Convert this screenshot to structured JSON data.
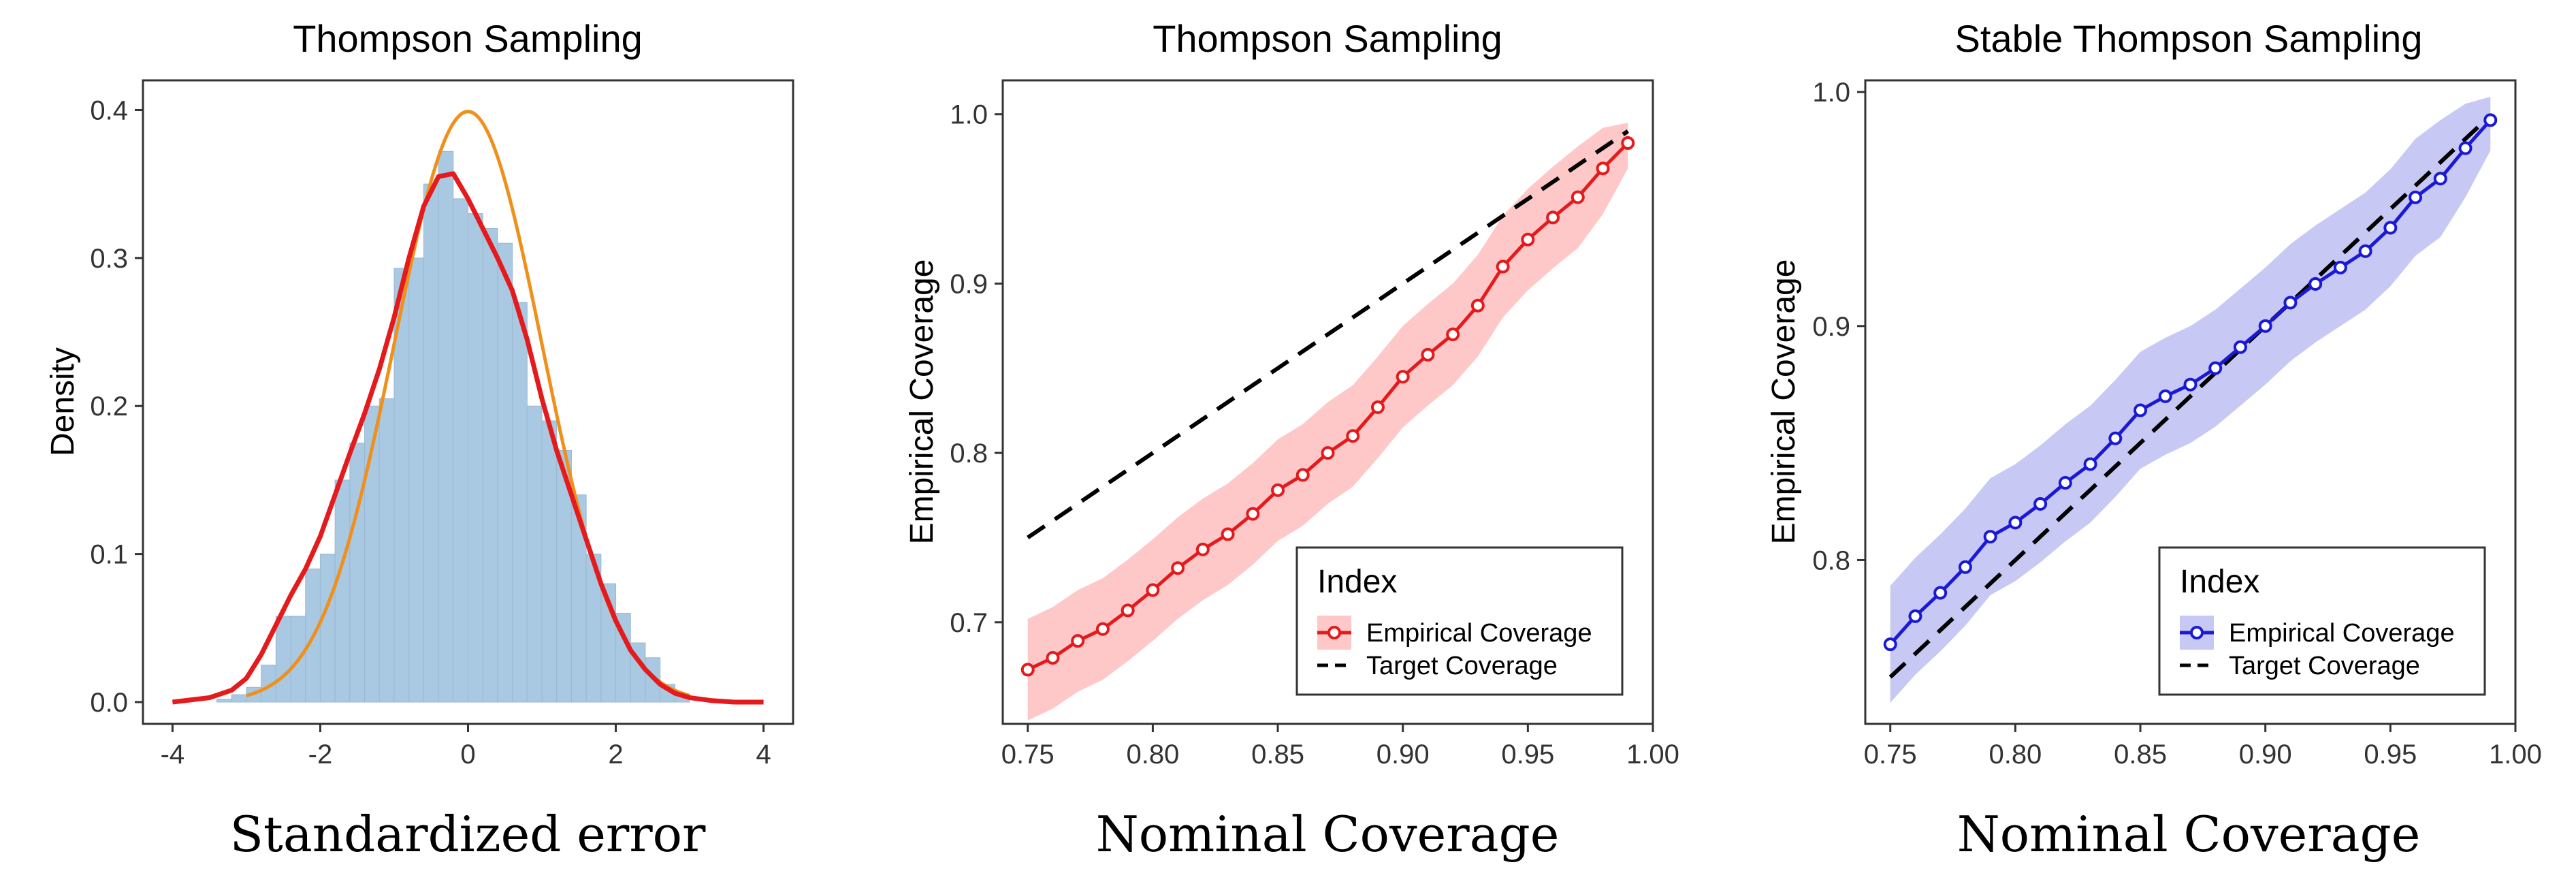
{
  "chart_data": [
    {
      "type": "histogram",
      "title": "Thompson Sampling",
      "xlabel": "Standardized error",
      "ylabel": "Density",
      "xlim": [
        -4,
        4
      ],
      "ylim": [
        0,
        0.4
      ],
      "xticks": [
        "-4",
        "-2",
        "0",
        "2",
        "4"
      ],
      "yticks": [
        "0.0",
        "0.1",
        "0.2",
        "0.3",
        "0.4"
      ],
      "grid": false,
      "colors": {
        "bars": "#a9c8e1",
        "kde": "#e41a1c",
        "normal": "#f0901c"
      },
      "histogram": {
        "bin_width": 0.2,
        "bin_starts": [
          -3.4,
          -3.2,
          -3.0,
          -2.8,
          -2.6,
          -2.4,
          -2.2,
          -2.0,
          -1.8,
          -1.6,
          -1.4,
          -1.2,
          -1.0,
          -0.8,
          -0.6,
          -0.4,
          -0.2,
          0.0,
          0.2,
          0.4,
          0.6,
          0.8,
          1.0,
          1.2,
          1.4,
          1.6,
          1.8,
          2.0,
          2.2,
          2.4,
          2.6,
          2.8
        ],
        "density": [
          0.002,
          0.005,
          0.01,
          0.025,
          0.058,
          0.058,
          0.09,
          0.1,
          0.15,
          0.175,
          0.2,
          0.205,
          0.293,
          0.3,
          0.35,
          0.372,
          0.34,
          0.33,
          0.32,
          0.31,
          0.27,
          0.2,
          0.19,
          0.17,
          0.14,
          0.1,
          0.08,
          0.06,
          0.04,
          0.03,
          0.012,
          0.005
        ]
      },
      "kde": {
        "x": [
          -4,
          -3.5,
          -3.2,
          -3,
          -2.8,
          -2.6,
          -2.4,
          -2.2,
          -2,
          -1.8,
          -1.6,
          -1.4,
          -1.2,
          -1,
          -0.8,
          -0.6,
          -0.4,
          -0.2,
          0,
          0.2,
          0.4,
          0.6,
          0.8,
          1,
          1.2,
          1.4,
          1.6,
          1.8,
          2,
          2.2,
          2.4,
          2.6,
          2.8,
          3,
          3.3,
          3.6,
          4
        ],
        "y": [
          0,
          0.003,
          0.008,
          0.016,
          0.032,
          0.052,
          0.072,
          0.09,
          0.112,
          0.14,
          0.168,
          0.195,
          0.225,
          0.26,
          0.3,
          0.335,
          0.355,
          0.357,
          0.34,
          0.32,
          0.3,
          0.278,
          0.245,
          0.205,
          0.17,
          0.14,
          0.11,
          0.08,
          0.055,
          0.035,
          0.022,
          0.012,
          0.006,
          0.003,
          0.001,
          0,
          0
        ]
      },
      "normal_curve": {
        "mean": 0,
        "sd": 1
      }
    },
    {
      "type": "line",
      "title": "Thompson Sampling",
      "xlabel": "Nominal Coverage",
      "ylabel": "Empirical Coverage",
      "xlim": [
        0.74,
        1.0
      ],
      "ylim": [
        0.64,
        1.02
      ],
      "xticks": [
        "0.75",
        "0.80",
        "0.85",
        "0.90",
        "0.95",
        "1.00"
      ],
      "yticks": [
        "0.7",
        "0.8",
        "0.9",
        "1.0"
      ],
      "grid": false,
      "legend": {
        "title": "Index",
        "position": "bottom-right",
        "entries": [
          {
            "label": "Empirical Coverage",
            "style": "line-point-band"
          },
          {
            "label": "Target Coverage",
            "style": "dashed"
          }
        ]
      },
      "x": [
        0.75,
        0.76,
        0.77,
        0.78,
        0.79,
        0.8,
        0.81,
        0.82,
        0.83,
        0.84,
        0.85,
        0.86,
        0.87,
        0.88,
        0.89,
        0.9,
        0.91,
        0.92,
        0.93,
        0.94,
        0.95,
        0.96,
        0.97,
        0.98,
        0.99
      ],
      "series": [
        {
          "name": "Empirical Coverage",
          "color": "#e41a1c",
          "band_color": "#ffc8c8",
          "values": [
            0.672,
            0.679,
            0.689,
            0.696,
            0.707,
            0.719,
            0.732,
            0.743,
            0.752,
            0.764,
            0.778,
            0.787,
            0.8,
            0.81,
            0.827,
            0.845,
            0.858,
            0.87,
            0.887,
            0.91,
            0.926,
            0.939,
            0.951,
            0.968,
            0.983
          ],
          "lower": [
            0.642,
            0.649,
            0.659,
            0.666,
            0.677,
            0.689,
            0.702,
            0.713,
            0.722,
            0.734,
            0.748,
            0.757,
            0.77,
            0.78,
            0.797,
            0.815,
            0.828,
            0.84,
            0.857,
            0.88,
            0.896,
            0.909,
            0.921,
            0.941,
            0.968
          ],
          "upper": [
            0.702,
            0.709,
            0.719,
            0.726,
            0.737,
            0.749,
            0.762,
            0.773,
            0.782,
            0.794,
            0.808,
            0.817,
            0.83,
            0.84,
            0.857,
            0.875,
            0.888,
            0.9,
            0.917,
            0.94,
            0.956,
            0.969,
            0.981,
            0.992,
            0.995
          ]
        },
        {
          "name": "Target Coverage",
          "color": "#000000",
          "values": [
            0.75,
            0.76,
            0.77,
            0.78,
            0.79,
            0.8,
            0.81,
            0.82,
            0.83,
            0.84,
            0.85,
            0.86,
            0.87,
            0.88,
            0.89,
            0.9,
            0.91,
            0.92,
            0.93,
            0.94,
            0.95,
            0.96,
            0.97,
            0.98,
            0.99
          ]
        }
      ]
    },
    {
      "type": "line",
      "title": "Stable Thompson Sampling",
      "xlabel": "Nominal Coverage",
      "ylabel": "Empirical Coverage",
      "xlim": [
        0.74,
        1.0
      ],
      "ylim": [
        0.73,
        1.005
      ],
      "xticks": [
        "0.75",
        "0.80",
        "0.85",
        "0.90",
        "0.95",
        "1.00"
      ],
      "yticks": [
        "0.8",
        "0.9",
        "1.0"
      ],
      "grid": false,
      "legend": {
        "title": "Index",
        "position": "bottom-right",
        "entries": [
          {
            "label": "Empirical Coverage",
            "style": "line-point-band"
          },
          {
            "label": "Target Coverage",
            "style": "dashed"
          }
        ]
      },
      "x": [
        0.75,
        0.76,
        0.77,
        0.78,
        0.79,
        0.8,
        0.81,
        0.82,
        0.83,
        0.84,
        0.85,
        0.86,
        0.87,
        0.88,
        0.89,
        0.9,
        0.91,
        0.92,
        0.93,
        0.94,
        0.95,
        0.96,
        0.97,
        0.98,
        0.99
      ],
      "series": [
        {
          "name": "Empirical Coverage",
          "color": "#1a1ad6",
          "band_color": "#c8c8f5",
          "values": [
            0.764,
            0.776,
            0.786,
            0.797,
            0.81,
            0.816,
            0.824,
            0.833,
            0.841,
            0.852,
            0.864,
            0.87,
            0.875,
            0.882,
            0.891,
            0.9,
            0.91,
            0.918,
            0.925,
            0.932,
            0.942,
            0.955,
            0.963,
            0.976,
            0.988
          ],
          "lower": [
            0.739,
            0.751,
            0.761,
            0.772,
            0.785,
            0.791,
            0.799,
            0.808,
            0.816,
            0.827,
            0.839,
            0.845,
            0.85,
            0.857,
            0.866,
            0.875,
            0.885,
            0.893,
            0.9,
            0.907,
            0.917,
            0.93,
            0.938,
            0.955,
            0.975
          ],
          "upper": [
            0.789,
            0.801,
            0.811,
            0.822,
            0.835,
            0.841,
            0.849,
            0.858,
            0.866,
            0.877,
            0.889,
            0.895,
            0.9,
            0.907,
            0.916,
            0.925,
            0.935,
            0.943,
            0.95,
            0.957,
            0.967,
            0.98,
            0.988,
            0.995,
            0.998
          ]
        },
        {
          "name": "Target Coverage",
          "color": "#000000",
          "values": [
            0.75,
            0.76,
            0.77,
            0.78,
            0.79,
            0.8,
            0.81,
            0.82,
            0.83,
            0.84,
            0.85,
            0.86,
            0.87,
            0.88,
            0.89,
            0.9,
            0.91,
            0.92,
            0.93,
            0.94,
            0.95,
            0.96,
            0.97,
            0.98,
            0.99
          ]
        }
      ]
    }
  ]
}
